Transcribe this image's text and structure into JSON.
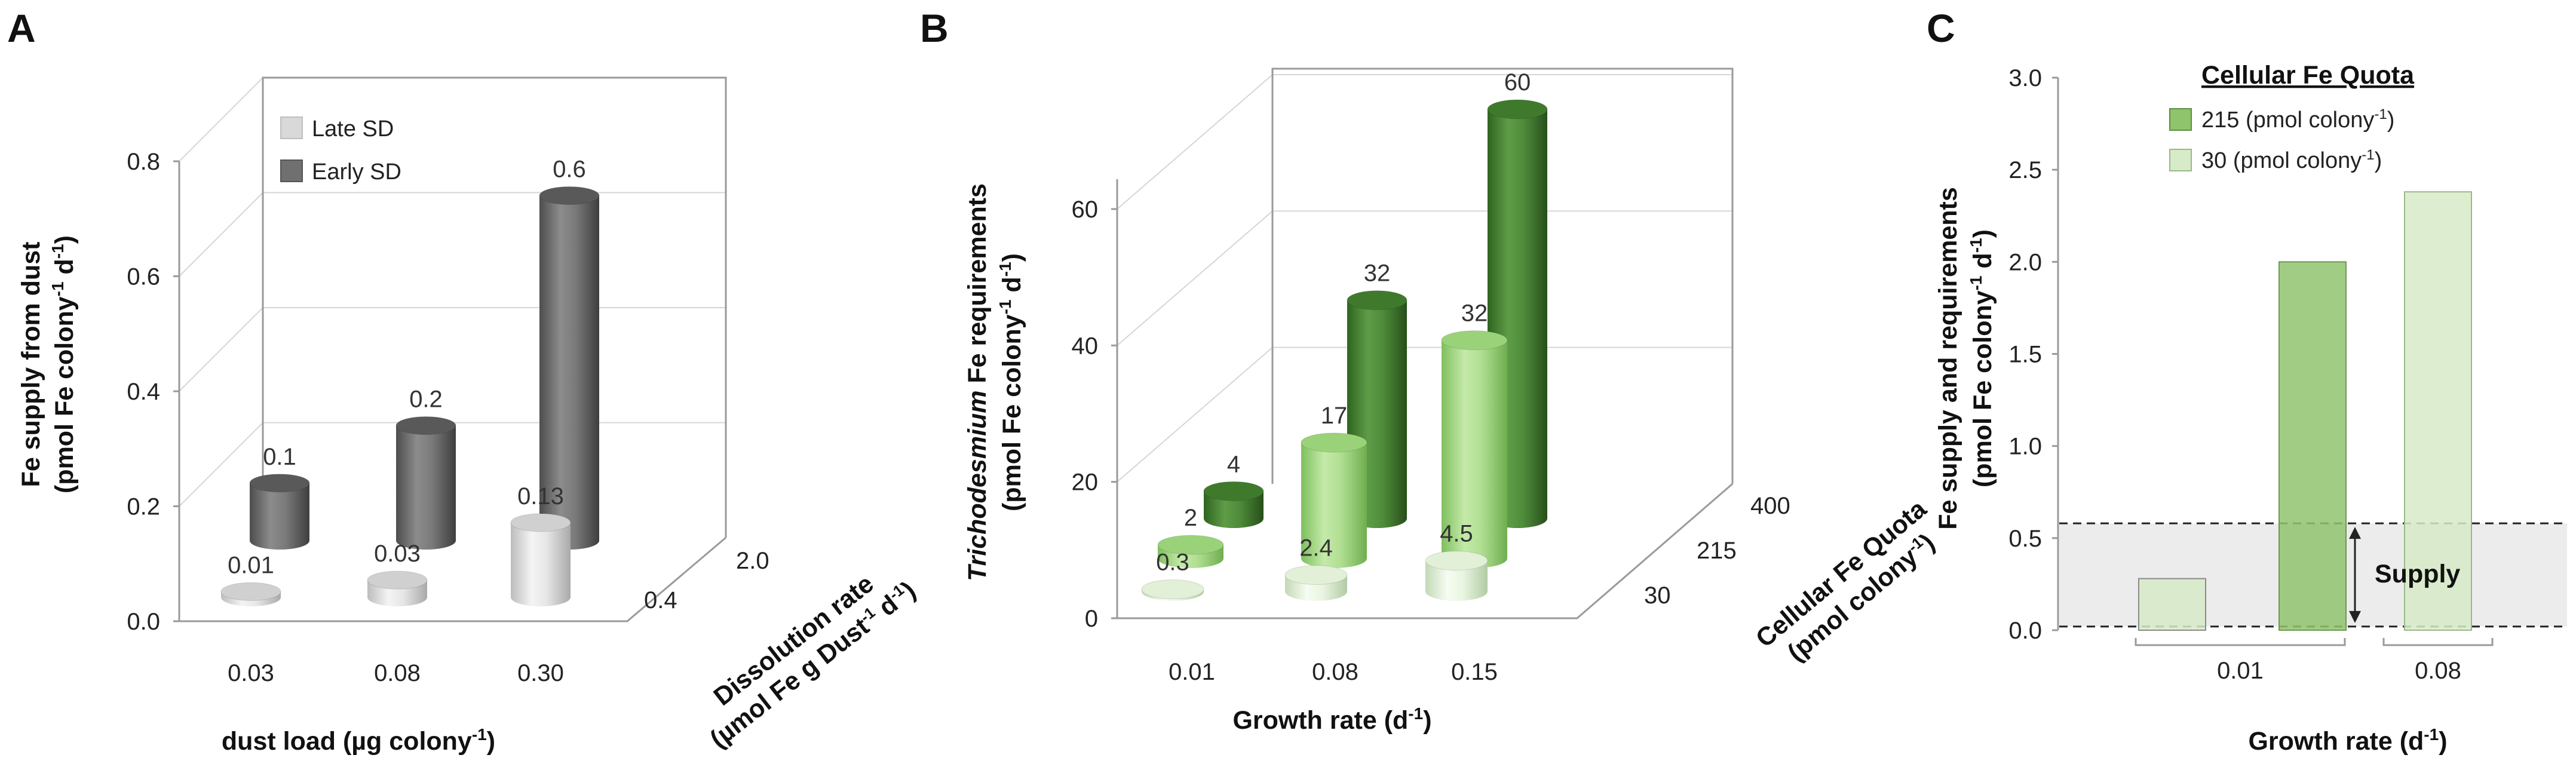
{
  "colors": {
    "dark_grey_cylinder": "#6e6e6e",
    "light_grey_cylinder": "#dcdcdc",
    "dark_green_cylinder": "#4e8a3a",
    "light_green_cylinder": "#a9d98b",
    "bar_dark_green": "#8fc46d",
    "bar_light_green": "#d7ebc8",
    "supply_band": "#ececec"
  },
  "chart_data": [
    {
      "panel": "A",
      "type": "bar",
      "style": "3d-cylinder",
      "categories": [
        "0.03",
        "0.08",
        "0.30"
      ],
      "depth_categories": [
        "0.4",
        "2.0"
      ],
      "series": [
        {
          "name": "Late SD",
          "depth": "0.4",
          "values": [
            0.01,
            0.03,
            0.13
          ],
          "labels": [
            "0.01",
            "0.03",
            "0.13"
          ]
        },
        {
          "name": "Early SD",
          "depth": "2.0",
          "values": [
            0.1,
            0.2,
            0.6
          ],
          "labels": [
            "0.1",
            "0.2",
            "0.6"
          ]
        }
      ],
      "yticks": [
        "0.0",
        "0.2",
        "0.4",
        "0.6",
        "0.8"
      ],
      "ylim": [
        0,
        0.8
      ],
      "xlabel": "dust load (µg colony",
      "xlabel_sup": "-1",
      "xlabel_end": ")",
      "ylabel_line1": "Fe supply from dust",
      "ylabel_line2": "(pmol Fe colony",
      "ylabel_sup1": "-1",
      "ylabel_mid": " d",
      "ylabel_sup2": "-1",
      "ylabel_end": ")",
      "zlabel_line1": "Dissolution rate",
      "zlabel_line2": "(µmol Fe g Dust",
      "zlabel_sup1": "-1",
      "zlabel_mid": " d",
      "zlabel_sup2": "-1",
      "zlabel_end": ")",
      "legend": [
        "Late SD",
        "Early SD"
      ]
    },
    {
      "panel": "B",
      "type": "bar",
      "style": "3d-cylinder",
      "categories": [
        "0.01",
        "0.08",
        "0.15"
      ],
      "depth_categories": [
        "30",
        "215",
        "400"
      ],
      "series": [
        {
          "name": "30",
          "depth": "30",
          "values": [
            0.3,
            2.4,
            4.5
          ],
          "labels": [
            "0.3",
            "2.4",
            "4.5"
          ]
        },
        {
          "name": "215",
          "depth": "215",
          "values": [
            2,
            17,
            32
          ],
          "labels": [
            "2",
            "17",
            "32"
          ]
        },
        {
          "name": "400",
          "depth": "400",
          "values": [
            4,
            32,
            60
          ],
          "labels": [
            "4",
            "32",
            "60"
          ]
        }
      ],
      "yticks": [
        "0",
        "20",
        "40",
        "60"
      ],
      "ylim": [
        0,
        60
      ],
      "xlabel": "Growth rate (d",
      "xlabel_sup": "-1",
      "xlabel_end": ")",
      "ylabel_italic": "Trichodesmium",
      "ylabel_line1_rest": "  Fe requirements",
      "ylabel_line2": "(pmol Fe colony",
      "ylabel_sup1": "-1",
      "ylabel_mid": " d",
      "ylabel_sup2": "-1",
      "ylabel_end": ")",
      "zlabel_line1": "Cellular Fe Quota",
      "zlabel_line2": "(pmol colony",
      "zlabel_sup": "-1",
      "zlabel_end": ")"
    },
    {
      "panel": "C",
      "type": "bar",
      "categories": [
        "0.01",
        "0.08"
      ],
      "series": [
        {
          "name": "215 (pmol colony-1)",
          "values": [
            2.0,
            null
          ]
        },
        {
          "name": "30 (pmol colony-1)",
          "values": [
            0.28,
            2.38
          ]
        }
      ],
      "yticks": [
        "0.0",
        "0.5",
        "1.0",
        "1.5",
        "2.0",
        "2.5",
        "3.0"
      ],
      "ylim": [
        0,
        3.0
      ],
      "supply_band": [
        0.02,
        0.58
      ],
      "supply_label": "Supply",
      "xlabel": "Growth rate (d",
      "xlabel_sup": "-1",
      "xlabel_end": ")",
      "ylabel_line1": "Fe supply and requirements",
      "ylabel_line2": "(pmol Fe colony",
      "ylabel_sup1": "-1",
      "ylabel_mid": " d",
      "ylabel_sup2": "-1",
      "ylabel_end": ")",
      "legend_title": "Cellular Fe Quota",
      "legend": [
        {
          "value": "215",
          "unit": " (pmol colony",
          "sup": "-1",
          "end": ")"
        },
        {
          "value": " 30",
          "unit": " (pmol colony",
          "sup": "-1",
          "end": ")"
        }
      ]
    }
  ],
  "panel_labels": [
    "A",
    "B",
    "C"
  ]
}
